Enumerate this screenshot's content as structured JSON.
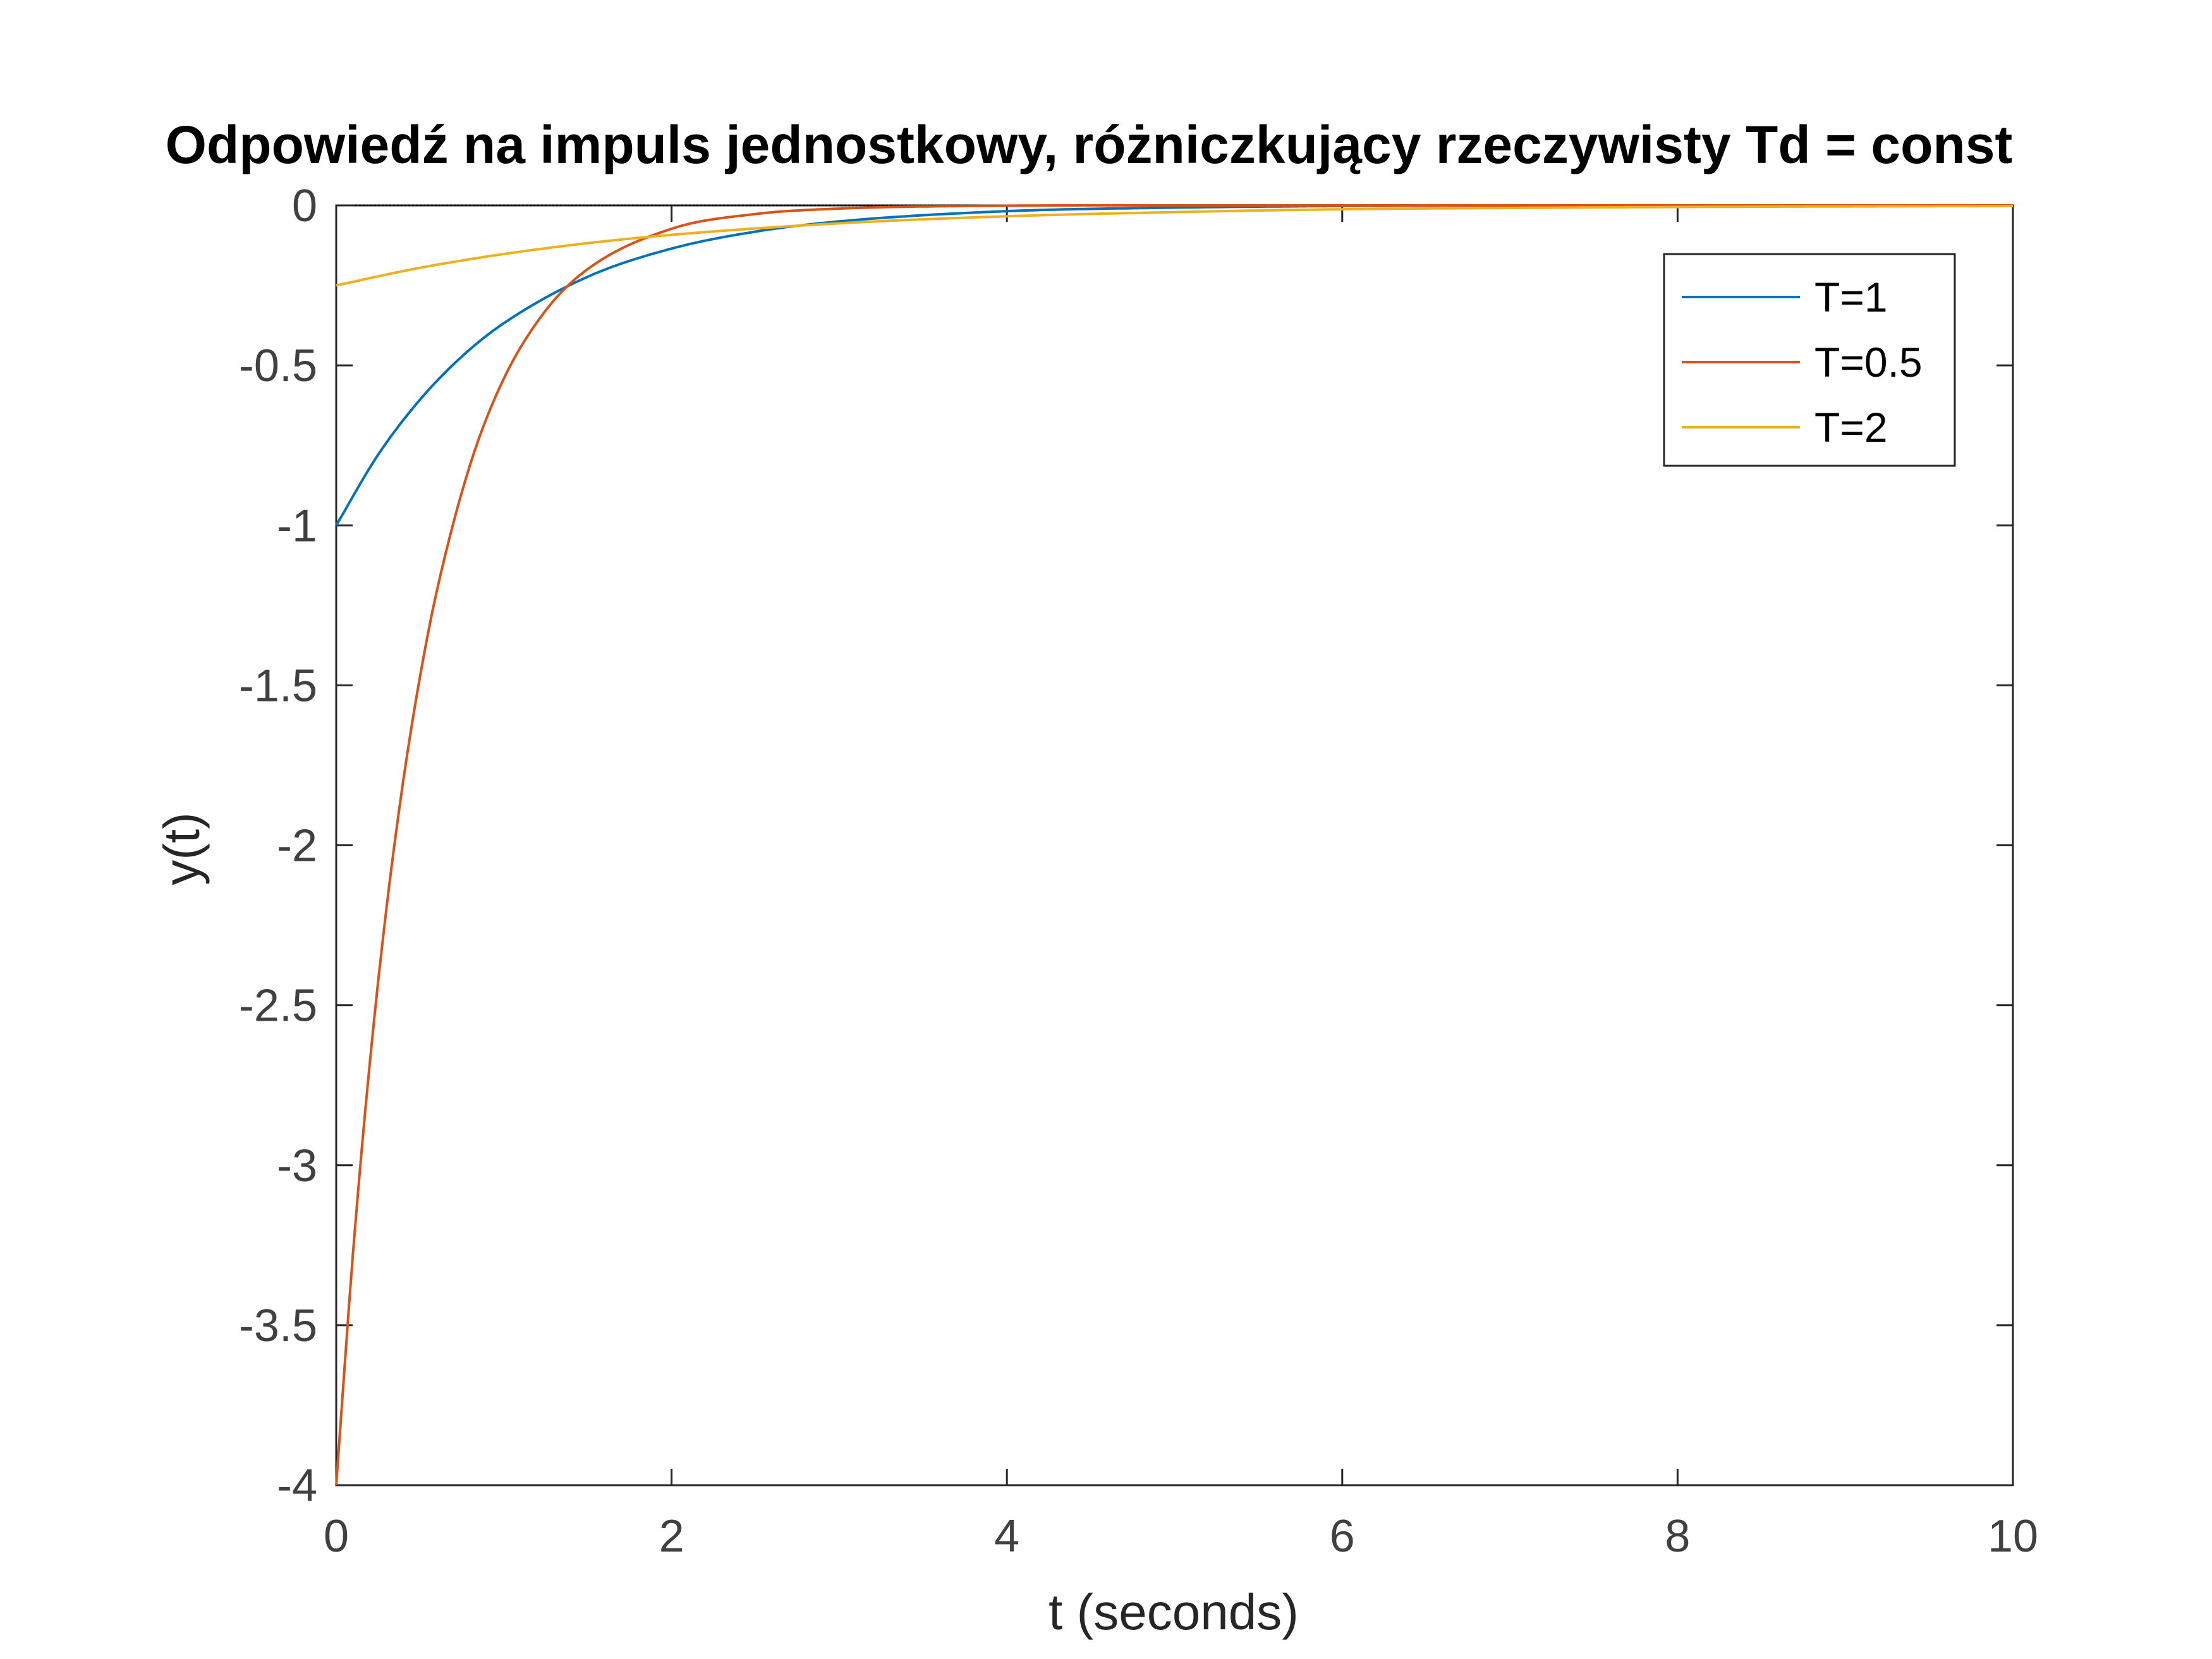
{
  "chart_data": {
    "type": "line",
    "title": "Odpowiedź na impuls jednostkowy, różniczkujący rzeczywisty Td = const",
    "xlabel": "t (seconds)",
    "ylabel": "y(t)",
    "xlim": [
      0,
      10
    ],
    "ylim": [
      -4,
      0
    ],
    "xticks": [
      0,
      2,
      4,
      6,
      8,
      10
    ],
    "yticks": [
      0,
      -0.5,
      -1,
      -1.5,
      -2,
      -2.5,
      -3,
      -3.5,
      -4
    ],
    "x_tick_labels": [
      "0",
      "2",
      "4",
      "6",
      "8",
      "10"
    ],
    "y_tick_labels": [
      "0",
      "-0.5",
      "-1",
      "-1.5",
      "-2",
      "-2.5",
      "-3",
      "-3.5",
      "-4"
    ],
    "grid": false,
    "legend_position": "top-right",
    "series": [
      {
        "name": "T=1",
        "color": "#0072BD",
        "x": [
          0,
          0.25,
          0.5,
          0.75,
          1,
          1.5,
          2,
          2.5,
          3,
          4,
          5,
          6,
          8,
          10
        ],
        "y": [
          -1,
          -0.779,
          -0.607,
          -0.472,
          -0.368,
          -0.223,
          -0.135,
          -0.082,
          -0.05,
          -0.018,
          -0.007,
          -0.002,
          0,
          0
        ]
      },
      {
        "name": "T=0.5",
        "color": "#D95319",
        "x": [
          0,
          0.1,
          0.2,
          0.3,
          0.4,
          0.5,
          0.6,
          0.8,
          1,
          1.25,
          1.5,
          2,
          2.5,
          3,
          4,
          5,
          10
        ],
        "y": [
          -4,
          -3.275,
          -2.681,
          -2.195,
          -1.797,
          -1.472,
          -1.205,
          -0.808,
          -0.541,
          -0.328,
          -0.199,
          -0.073,
          -0.027,
          -0.01,
          -0.001,
          0,
          0
        ]
      },
      {
        "name": "T=2",
        "color": "#EDB120",
        "x": [
          0,
          0.5,
          1,
          1.5,
          2,
          3,
          4,
          5,
          6,
          7,
          8,
          10
        ],
        "y": [
          -0.25,
          -0.195,
          -0.152,
          -0.118,
          -0.092,
          -0.056,
          -0.034,
          -0.021,
          -0.012,
          -0.008,
          -0.005,
          -0.002
        ]
      }
    ]
  }
}
